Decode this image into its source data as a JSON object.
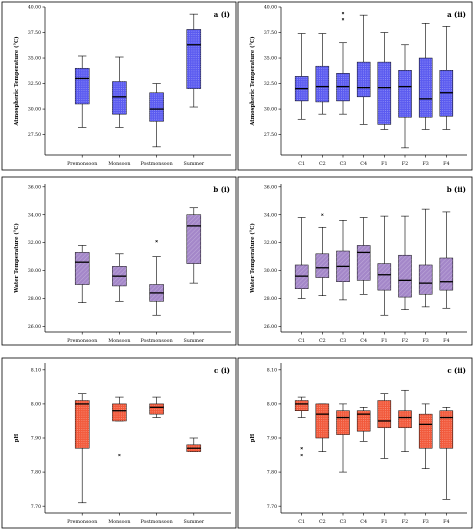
{
  "chart_data": [
    {
      "type": "box",
      "panel_label": "a (i)",
      "ylabel": "Atmospheric Temperature (°C)",
      "ylim": [
        25.5,
        40
      ],
      "yticks": [
        27.5,
        30.0,
        32.5,
        35.0,
        37.5,
        40.0
      ],
      "ytick_labels": [
        "27.50",
        "30.00",
        "32.50",
        "35.00",
        "37.50",
        "40.00"
      ],
      "categories": [
        "Premonsoon",
        "Monsoon",
        "Postmonsoon",
        "Summer"
      ],
      "box_color": "#5b5bf0",
      "boxes": [
        {
          "min": 28.2,
          "q1": 30.5,
          "median": 33.0,
          "q3": 34.0,
          "max": 35.2,
          "outliers": []
        },
        {
          "min": 28.2,
          "q1": 29.5,
          "median": 31.2,
          "q3": 32.7,
          "max": 35.1,
          "outliers": []
        },
        {
          "min": 26.3,
          "q1": 28.8,
          "median": 30.0,
          "q3": 31.6,
          "max": 32.5,
          "outliers": []
        },
        {
          "min": 30.2,
          "q1": 32.0,
          "median": 36.3,
          "q3": 37.8,
          "max": 39.3,
          "outliers": []
        }
      ]
    },
    {
      "type": "box",
      "panel_label": "a (ii)",
      "ylabel": "Atmospheric Temperature (°C)",
      "ylim": [
        25.5,
        40
      ],
      "yticks": [
        27.5,
        30.0,
        32.5,
        35.0,
        37.5,
        40.0
      ],
      "ytick_labels": [
        "27.50",
        "30.00",
        "32.50",
        "35.00",
        "37.50",
        "40.00"
      ],
      "categories": [
        "C1",
        "C2",
        "C3",
        "C4",
        "F1",
        "F2",
        "F3",
        "F4"
      ],
      "box_color": "#5b5bf0",
      "boxes": [
        {
          "min": 29.0,
          "q1": 30.8,
          "median": 32.0,
          "q3": 33.2,
          "max": 37.4,
          "outliers": []
        },
        {
          "min": 29.5,
          "q1": 30.7,
          "median": 32.2,
          "q3": 34.2,
          "max": 37.4,
          "outliers": []
        },
        {
          "min": 29.5,
          "q1": 30.8,
          "median": 32.2,
          "q3": 33.5,
          "max": 36.5,
          "outliers": [
            38.8,
            39.4
          ]
        },
        {
          "min": 28.5,
          "q1": 31.2,
          "median": 32.1,
          "q3": 34.6,
          "max": 39.2,
          "outliers": []
        },
        {
          "min": 28.0,
          "q1": 28.5,
          "median": 32.1,
          "q3": 34.6,
          "max": 37.5,
          "outliers": []
        },
        {
          "min": 26.2,
          "q1": 29.2,
          "median": 32.2,
          "q3": 33.8,
          "max": 36.3,
          "outliers": []
        },
        {
          "min": 28.0,
          "q1": 29.2,
          "median": 31.0,
          "q3": 35.0,
          "max": 38.4,
          "outliers": []
        },
        {
          "min": 28.0,
          "q1": 29.3,
          "median": 31.6,
          "q3": 33.8,
          "max": 38.1,
          "outliers": []
        }
      ]
    },
    {
      "type": "box",
      "panel_label": "b (i)",
      "ylabel": "Water Temperature (°C)",
      "ylim": [
        25.6,
        36.2
      ],
      "yticks": [
        26,
        28,
        30,
        32,
        34,
        36
      ],
      "ytick_labels": [
        "26.00",
        "28.00",
        "30.00",
        "32.00",
        "34.00",
        "36.00"
      ],
      "categories": [
        "Premonsoon",
        "Monsoon",
        "Postmonsoon",
        "Summer"
      ],
      "box_color": "#a487c9",
      "boxes": [
        {
          "min": 27.7,
          "q1": 29.0,
          "median": 30.6,
          "q3": 31.3,
          "max": 31.8,
          "outliers": []
        },
        {
          "min": 27.8,
          "q1": 28.9,
          "median": 29.6,
          "q3": 30.3,
          "max": 31.2,
          "outliers": []
        },
        {
          "min": 26.8,
          "q1": 27.8,
          "median": 28.4,
          "q3": 29.0,
          "max": 31.0,
          "outliers": [
            32.1
          ]
        },
        {
          "min": 29.1,
          "q1": 30.5,
          "median": 33.2,
          "q3": 34.0,
          "max": 34.5,
          "outliers": []
        }
      ]
    },
    {
      "type": "box",
      "panel_label": "b (ii)",
      "ylabel": "Water Temperature (°C)",
      "ylim": [
        25.6,
        36.2
      ],
      "yticks": [
        26,
        28,
        30,
        32,
        34,
        36
      ],
      "ytick_labels": [
        "26.00",
        "28.00",
        "30.00",
        "32.00",
        "34.00",
        "36.00"
      ],
      "categories": [
        "C1",
        "C2",
        "C3",
        "C4",
        "F1",
        "F2",
        "F3",
        "F4"
      ],
      "box_color": "#a487c9",
      "boxes": [
        {
          "min": 28.0,
          "q1": 28.7,
          "median": 29.6,
          "q3": 30.4,
          "max": 33.8,
          "outliers": []
        },
        {
          "min": 28.2,
          "q1": 29.5,
          "median": 30.2,
          "q3": 31.2,
          "max": 33.1,
          "outliers": [
            34.0
          ]
        },
        {
          "min": 27.9,
          "q1": 29.2,
          "median": 30.3,
          "q3": 31.4,
          "max": 33.6,
          "outliers": []
        },
        {
          "min": 28.3,
          "q1": 29.3,
          "median": 31.3,
          "q3": 31.8,
          "max": 33.8,
          "outliers": []
        },
        {
          "min": 26.8,
          "q1": 28.6,
          "median": 29.7,
          "q3": 30.5,
          "max": 33.9,
          "outliers": []
        },
        {
          "min": 27.2,
          "q1": 28.1,
          "median": 29.3,
          "q3": 31.1,
          "max": 33.9,
          "outliers": []
        },
        {
          "min": 27.4,
          "q1": 28.3,
          "median": 29.1,
          "q3": 30.4,
          "max": 34.4,
          "outliers": []
        },
        {
          "min": 27.3,
          "q1": 28.6,
          "median": 29.2,
          "q3": 30.9,
          "max": 34.2,
          "outliers": []
        }
      ]
    },
    {
      "type": "box",
      "panel_label": "c (i)",
      "ylabel": "pH",
      "ylim": [
        7.68,
        8.12
      ],
      "yticks": [
        7.7,
        7.8,
        7.9,
        8.0,
        8.1
      ],
      "ytick_labels": [
        "7.70",
        "7.80",
        "7.90",
        "8.00",
        "8.10"
      ],
      "categories": [
        "Premonsoon",
        "Monsoon",
        "Postmonsoon",
        "Summer"
      ],
      "box_color": "#f25a3c",
      "boxes": [
        {
          "min": 7.71,
          "q1": 7.87,
          "median": 8.0,
          "q3": 8.01,
          "max": 8.03,
          "outliers": []
        },
        {
          "min": 7.95,
          "q1": 7.95,
          "median": 7.98,
          "q3": 8.0,
          "max": 8.02,
          "outliers": [
            7.85
          ]
        },
        {
          "min": 7.96,
          "q1": 7.97,
          "median": 7.99,
          "q3": 8.0,
          "max": 8.02,
          "outliers": []
        },
        {
          "min": 7.86,
          "q1": 7.86,
          "median": 7.87,
          "q3": 7.88,
          "max": 7.9,
          "outliers": []
        }
      ]
    },
    {
      "type": "box",
      "panel_label": "c (ii)",
      "ylabel": "pH",
      "ylim": [
        7.68,
        8.12
      ],
      "yticks": [
        7.7,
        7.8,
        7.9,
        8.0,
        8.1
      ],
      "ytick_labels": [
        "7.70",
        "7.80",
        "7.90",
        "8.00",
        "8.10"
      ],
      "categories": [
        "C1",
        "C2",
        "C3",
        "C4",
        "F1",
        "F2",
        "F3",
        "F4"
      ],
      "box_color": "#f25a3c",
      "boxes": [
        {
          "min": 7.96,
          "q1": 7.98,
          "median": 8.0,
          "q3": 8.01,
          "max": 8.02,
          "outliers": [
            7.85,
            7.87
          ]
        },
        {
          "min": 7.86,
          "q1": 7.9,
          "median": 7.97,
          "q3": 8.0,
          "max": 8.0,
          "outliers": []
        },
        {
          "min": 7.8,
          "q1": 7.91,
          "median": 7.96,
          "q3": 7.98,
          "max": 8.0,
          "outliers": []
        },
        {
          "min": 7.89,
          "q1": 7.92,
          "median": 7.97,
          "q3": 7.98,
          "max": 7.99,
          "outliers": []
        },
        {
          "min": 7.84,
          "q1": 7.93,
          "median": 7.95,
          "q3": 8.01,
          "max": 8.03,
          "outliers": []
        },
        {
          "min": 7.86,
          "q1": 7.93,
          "median": 7.96,
          "q3": 7.98,
          "max": 8.04,
          "outliers": []
        },
        {
          "min": 7.81,
          "q1": 7.87,
          "median": 7.94,
          "q3": 7.97,
          "max": 8.0,
          "outliers": []
        },
        {
          "min": 7.72,
          "q1": 7.87,
          "median": 7.96,
          "q3": 7.98,
          "max": 7.99,
          "outliers": []
        }
      ]
    }
  ]
}
